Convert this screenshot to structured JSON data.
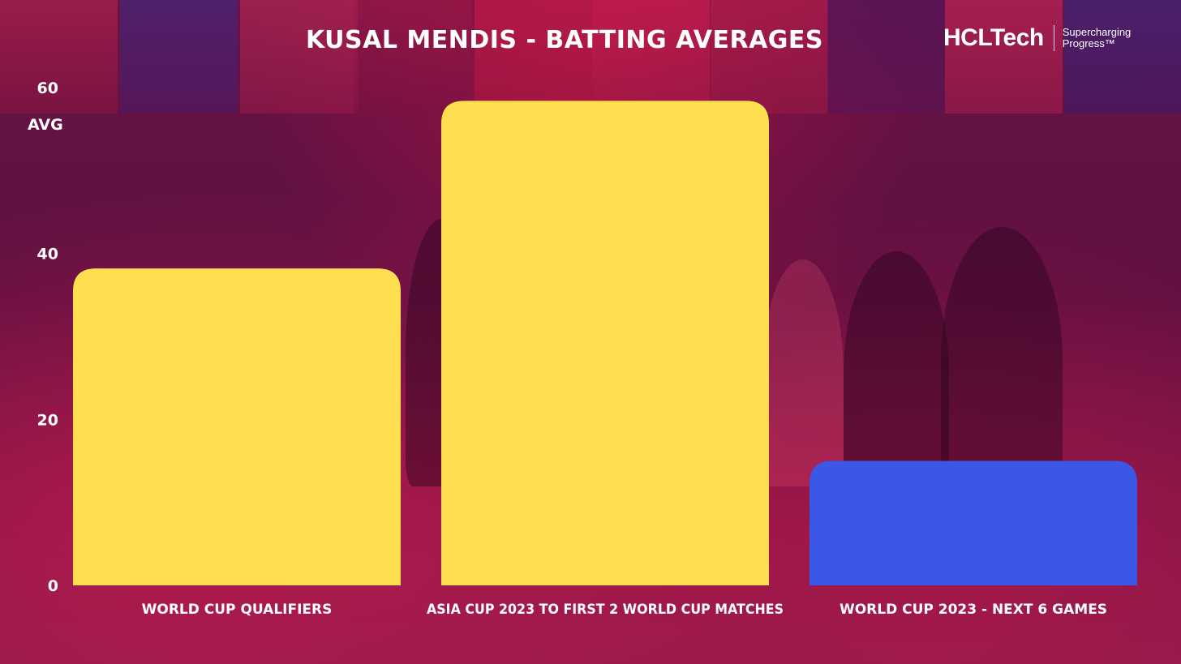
{
  "brand": {
    "name": "HCLTech",
    "tagline_line1": "Supercharging",
    "tagline_line2": "Progress™"
  },
  "chart_data": {
    "type": "bar",
    "title": "KUSAL MENDIS - BATTING AVERAGES",
    "ylabel": "AVG",
    "xlabel": "",
    "categories": [
      "WORLD CUP QUALIFIERS",
      "ASIA CUP 2023 TO FIRST 2 WORLD CUP MATCHES",
      "WORLD CUP 2023 - NEXT 6 GAMES"
    ],
    "values": [
      38.2,
      58.4,
      15.0
    ],
    "bar_colors": [
      "#ffde4f",
      "#ffde4f",
      "#3a57e6"
    ],
    "ylim": [
      0,
      60
    ],
    "yticks": [
      0,
      20,
      40,
      60
    ],
    "grid": false,
    "legend": "none"
  }
}
